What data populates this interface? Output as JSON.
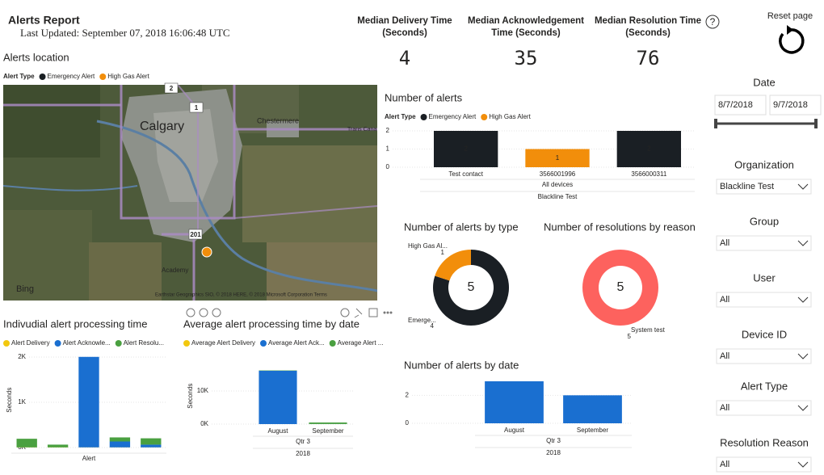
{
  "header": {
    "title": "Alerts Report",
    "last_updated": "Last Updated: September 07, 2018 16:06:48 UTC",
    "reset": "Reset page"
  },
  "help": "?",
  "kpis": [
    {
      "label": [
        "Median Delivery Time",
        "(Seconds)"
      ],
      "value": 4,
      "color": "#f2c80f"
    },
    {
      "label": [
        "Median Acknowledgement",
        "Time (Seconds)"
      ],
      "value": 35,
      "color": "#1f6fd0"
    },
    {
      "label": [
        "Median Resolution Time",
        "(Seconds)"
      ],
      "value": 76,
      "color": "#4a9a3a"
    }
  ],
  "map": {
    "title": "Alerts location",
    "legend_title": "Alert Type",
    "legend": [
      {
        "name": "Emergency Alert",
        "color": "#1a1f24"
      },
      {
        "name": "High Gas Alert",
        "color": "#f28e0b"
      }
    ],
    "places": [
      "Calgary",
      "Chestermere",
      "Academy",
      "Trans Cana"
    ],
    "road_shields": [
      "2",
      "1",
      "201"
    ],
    "logo": "Bing",
    "attribution": "Earthstar Geographics SIO, © 2018 HERE, © 2018 Microsoft Corporation Terms"
  },
  "filters": {
    "date": {
      "label": "Date",
      "from": "8/7/2018",
      "to": "9/7/2018"
    },
    "dropdowns": [
      {
        "label": "Organization",
        "value": "Blackline Test"
      },
      {
        "label": "Group",
        "value": "All"
      },
      {
        "label": "User",
        "value": "All"
      },
      {
        "label": "Device ID",
        "value": "All"
      },
      {
        "label": "Alert Type",
        "value": "All"
      },
      {
        "label": "Resolution Reason",
        "value": "All"
      }
    ]
  },
  "chart_data": [
    {
      "type": "bar",
      "title": "Number of alerts",
      "legend_title": "Alert Type",
      "categories": [
        "Test contact",
        "3566001996",
        "3566000311"
      ],
      "category_groups": [
        "All devices",
        "Blackline Test"
      ],
      "series": [
        {
          "name": "Emergency Alert",
          "color": "#1a1f24",
          "values": [
            2,
            null,
            2
          ]
        },
        {
          "name": "High Gas Alert",
          "color": "#f28e0b",
          "values": [
            null,
            1,
            null
          ]
        }
      ],
      "ylim": [
        0,
        2
      ],
      "yticks": [
        0,
        1,
        2
      ],
      "grid": true,
      "data_labels": true
    },
    {
      "type": "donut",
      "title": "Number of alerts by type",
      "categories": [
        "Emerge...",
        "High Gas Al..."
      ],
      "values": [
        4,
        1
      ],
      "colors": [
        "#1a1f24",
        "#f28e0b"
      ],
      "total": 5
    },
    {
      "type": "donut",
      "title": "Number of resolutions by reason",
      "categories": [
        "System test"
      ],
      "values": [
        5
      ],
      "colors": [
        "#fd625e"
      ],
      "total": 5
    },
    {
      "type": "bar",
      "title": "Indivudial alert processing time",
      "y_label": "Seconds",
      "categories": [
        null,
        null,
        null,
        null,
        null
      ],
      "category_groups": [
        "Alert"
      ],
      "series": [
        {
          "name": "Alert Delivery",
          "color": "#f2c80f",
          "values": [
            4,
            4,
            4,
            4,
            4
          ]
        },
        {
          "name": "Alert Acknowle...",
          "color": "#1a6fd0",
          "values": [
            0,
            0,
            2000,
            130,
            60
          ]
        },
        {
          "name": "Alert Resolu...",
          "color": "#4aa040",
          "values": [
            190,
            60,
            0,
            90,
            140
          ]
        }
      ],
      "ylim": [
        0,
        2100
      ],
      "yticks": [
        {
          "value": 0,
          "label": "0K"
        },
        {
          "value": 1000,
          "label": "1K"
        },
        {
          "value": 2000,
          "label": "2K"
        }
      ],
      "grid": true
    },
    {
      "type": "bar",
      "title": "Average alert processing time by date",
      "y_label": "Seconds",
      "categories": [
        "August",
        "September"
      ],
      "category_groups": [
        "Qtr 3",
        "2018"
      ],
      "series": [
        {
          "name": "Average Alert Delivery",
          "color": "#f2c80f",
          "values": [
            4,
            4
          ]
        },
        {
          "name": "Average Alert Ack...",
          "color": "#1a6fd0",
          "values": [
            16100,
            35
          ]
        },
        {
          "name": "Average Alert ...",
          "color": "#4aa040",
          "values": [
            100,
            450
          ]
        }
      ],
      "ylim": [
        0,
        17000
      ],
      "yticks": [
        {
          "value": 0,
          "label": "0K"
        },
        {
          "value": 10000,
          "label": "10K"
        }
      ],
      "grid": true
    },
    {
      "type": "bar",
      "title": "Number of alerts by date",
      "categories": [
        "August",
        "September"
      ],
      "category_groups": [
        "Qtr 3",
        "2018"
      ],
      "series": [
        {
          "color": "#1a6fd0",
          "values": [
            3,
            2
          ]
        }
      ],
      "ylim": [
        0,
        3
      ],
      "yticks": [
        0,
        2
      ],
      "grid": true
    }
  ]
}
